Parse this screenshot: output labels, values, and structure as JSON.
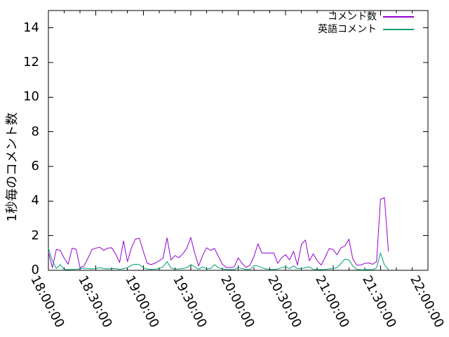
{
  "chart_data": {
    "type": "line",
    "title": "",
    "xlabel": "",
    "ylabel": "1秒毎のコメント数",
    "xlim": [
      "18:00:00",
      "22:00:00"
    ],
    "ylim": [
      0,
      15
    ],
    "y_ticks": [
      0,
      2,
      4,
      6,
      8,
      10,
      12,
      14
    ],
    "x_ticks_major": [
      "18:00:00",
      "18:30:00",
      "19:00:00",
      "19:30:00",
      "20:00:00",
      "20:30:00",
      "21:00:00",
      "21:30:00",
      "22:00:00"
    ],
    "x_minor_interval_seconds": 600,
    "grid": false,
    "legend_position": "top-right-inside",
    "x": [
      "18:00:00",
      "18:02:30",
      "18:05:00",
      "18:07:30",
      "18:10:00",
      "18:12:30",
      "18:15:00",
      "18:17:30",
      "18:20:00",
      "18:22:30",
      "18:25:00",
      "18:27:30",
      "18:30:00",
      "18:32:30",
      "18:35:00",
      "18:37:30",
      "18:40:00",
      "18:42:30",
      "18:45:00",
      "18:47:30",
      "18:50:00",
      "18:52:30",
      "18:55:00",
      "18:57:30",
      "19:00:00",
      "19:02:30",
      "19:05:00",
      "19:07:30",
      "19:10:00",
      "19:12:30",
      "19:15:00",
      "19:17:30",
      "19:20:00",
      "19:22:30",
      "19:25:00",
      "19:27:30",
      "19:30:00",
      "19:32:30",
      "19:35:00",
      "19:37:30",
      "19:40:00",
      "19:42:30",
      "19:45:00",
      "19:47:30",
      "19:50:00",
      "19:52:30",
      "19:55:00",
      "19:57:30",
      "20:00:00",
      "20:02:30",
      "20:05:00",
      "20:07:30",
      "20:10:00",
      "20:12:30",
      "20:15:00",
      "20:17:30",
      "20:20:00",
      "20:22:30",
      "20:25:00",
      "20:27:30",
      "20:30:00",
      "20:32:30",
      "20:35:00",
      "20:37:30",
      "20:40:00",
      "20:42:30",
      "20:45:00",
      "20:47:30",
      "20:50:00",
      "20:52:30",
      "20:55:00",
      "20:57:30",
      "21:00:00",
      "21:02:30",
      "21:05:00",
      "21:07:30",
      "21:10:00",
      "21:12:30",
      "21:15:00",
      "21:17:30",
      "21:20:00",
      "21:22:30",
      "21:25:00",
      "21:27:30",
      "21:30:00",
      "21:32:30",
      "21:35:00"
    ],
    "series": [
      {
        "name": "コメント数",
        "color": "#9400d3",
        "values": [
          1.05,
          0.15,
          1.2,
          1.15,
          0.7,
          0.35,
          1.27,
          1.22,
          0.15,
          0.25,
          0.7,
          1.2,
          1.28,
          1.33,
          1.15,
          1.28,
          1.3,
          0.95,
          0.45,
          1.7,
          0.5,
          1.3,
          1.8,
          1.85,
          1.1,
          0.4,
          0.33,
          0.42,
          0.55,
          0.7,
          1.87,
          0.6,
          0.85,
          0.73,
          0.95,
          1.27,
          1.9,
          1.0,
          0.25,
          0.85,
          1.3,
          1.15,
          1.27,
          0.8,
          0.35,
          0.16,
          0.15,
          0.2,
          0.72,
          0.4,
          0.16,
          0.3,
          0.8,
          1.53,
          1.0,
          1.0,
          1.0,
          1.0,
          0.4,
          0.73,
          0.9,
          0.6,
          1.1,
          0.3,
          1.5,
          1.75,
          0.55,
          0.95,
          0.55,
          0.3,
          0.75,
          1.25,
          1.2,
          0.9,
          1.3,
          1.4,
          1.8,
          0.65,
          0.3,
          0.3,
          0.4,
          0.42,
          0.35,
          0.5,
          4.1,
          4.2,
          1.1
        ]
      },
      {
        "name": "英語コメント",
        "color": "#009e73",
        "values": [
          1.27,
          0.55,
          0.1,
          0.33,
          0.05,
          0.04,
          0.05,
          0.05,
          0.1,
          0.13,
          0.1,
          0.08,
          0.1,
          0.15,
          0.1,
          0.08,
          0.1,
          0.1,
          0.05,
          0.1,
          0.15,
          0.3,
          0.35,
          0.33,
          0.15,
          0.07,
          0.05,
          0.07,
          0.1,
          0.2,
          0.5,
          0.13,
          0.07,
          0.08,
          0.1,
          0.15,
          0.33,
          0.2,
          0.07,
          0.2,
          0.1,
          0.1,
          0.33,
          0.15,
          0.07,
          0.05,
          0.04,
          0.05,
          0.16,
          0.1,
          0.05,
          0.05,
          0.27,
          0.25,
          0.15,
          0.08,
          0.05,
          0.05,
          0.07,
          0.16,
          0.2,
          0.1,
          0.25,
          0.1,
          0.1,
          0.15,
          0.2,
          0.05,
          0.05,
          0.04,
          0.05,
          0.08,
          0.1,
          0.15,
          0.4,
          0.65,
          0.6,
          0.25,
          0.05,
          0.03,
          0.03,
          0.04,
          0.03,
          0.15,
          1.0,
          0.3,
          0.05
        ]
      }
    ]
  },
  "colors": {
    "background": "#ffffff",
    "axis": "#000000",
    "text": "#000000"
  }
}
